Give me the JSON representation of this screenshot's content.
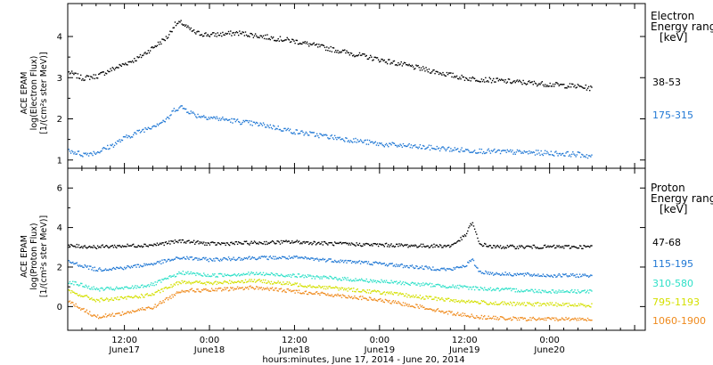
{
  "xlabel": "hours:minutes, June 17, 2014 - June 20, 2014",
  "x_ticks": [
    {
      "hour": 12,
      "label": "12:00",
      "day": "June17"
    },
    {
      "hour": 24,
      "label": "0:00",
      "day": "June18"
    },
    {
      "hour": 36,
      "label": "12:00",
      "day": "June18"
    },
    {
      "hour": 48,
      "label": "0:00",
      "day": "June19"
    },
    {
      "hour": 60,
      "label": "12:00",
      "day": "June19"
    },
    {
      "hour": 72,
      "label": "0:00",
      "day": "June20"
    }
  ],
  "chart_data": [
    {
      "type": "scatter",
      "panel": "electron",
      "ylabel_lines": [
        "ACE EPAM",
        "log(Electron Flux)",
        "[1/(cm²s ster MeV)]"
      ],
      "ylim": [
        0.8,
        4.8
      ],
      "yticks": [
        1,
        2,
        3,
        4
      ],
      "xlim_hours": [
        4,
        85.5
      ],
      "legend_title_lines": [
        "Electron",
        "Energy range",
        "[keV]"
      ],
      "series": [
        {
          "name": "38-53",
          "color": "#000000",
          "x": [
            4,
            6,
            8,
            10,
            12,
            14,
            16,
            18,
            19,
            20,
            21,
            22,
            24,
            28,
            32,
            36,
            40,
            44,
            48,
            52,
            56,
            60,
            64,
            68,
            72,
            76,
            78
          ],
          "y": [
            3.15,
            3.0,
            3.05,
            3.2,
            3.35,
            3.5,
            3.75,
            4.0,
            4.3,
            4.35,
            4.2,
            4.1,
            4.05,
            4.1,
            4.0,
            3.9,
            3.75,
            3.6,
            3.45,
            3.3,
            3.15,
            3.0,
            2.95,
            2.9,
            2.85,
            2.8,
            2.75
          ]
        },
        {
          "name": "175-315",
          "color": "#1f77d4",
          "x": [
            4,
            6,
            8,
            10,
            12,
            14,
            16,
            18,
            19,
            20,
            21,
            22,
            24,
            28,
            32,
            36,
            40,
            44,
            48,
            52,
            56,
            60,
            64,
            68,
            72,
            76,
            78
          ],
          "y": [
            1.25,
            1.15,
            1.2,
            1.35,
            1.55,
            1.7,
            1.85,
            2.0,
            2.25,
            2.3,
            2.2,
            2.1,
            2.05,
            1.95,
            1.85,
            1.7,
            1.6,
            1.5,
            1.4,
            1.35,
            1.3,
            1.25,
            1.22,
            1.2,
            1.18,
            1.15,
            1.1
          ]
        }
      ]
    },
    {
      "type": "scatter",
      "panel": "proton",
      "ylabel_lines": [
        "ACE EPAM",
        "log(Proton Flux)",
        "[1/(cm²s ster MeV)]"
      ],
      "ylim": [
        -1.2,
        7.0
      ],
      "yticks": [
        0,
        2,
        4,
        6
      ],
      "xlim_hours": [
        4,
        85.5
      ],
      "legend_title_lines": [
        "Proton",
        "Energy range",
        "[keV]"
      ],
      "series": [
        {
          "name": "47-68",
          "color": "#000000",
          "x": [
            4,
            8,
            12,
            16,
            20,
            24,
            30,
            36,
            42,
            48,
            54,
            58,
            60,
            61,
            62,
            64,
            68,
            72,
            76,
            78
          ],
          "y": [
            3.1,
            3.05,
            3.1,
            3.15,
            3.35,
            3.2,
            3.25,
            3.3,
            3.2,
            3.15,
            3.1,
            3.1,
            3.6,
            4.3,
            3.2,
            3.05,
            3.05,
            3.05,
            3.05,
            3.05
          ]
        },
        {
          "name": "115-195",
          "color": "#1f77d4",
          "x": [
            4,
            8,
            12,
            16,
            20,
            24,
            30,
            36,
            42,
            48,
            54,
            58,
            60,
            61,
            62,
            64,
            68,
            72,
            76,
            78
          ],
          "y": [
            2.3,
            1.9,
            2.0,
            2.2,
            2.5,
            2.4,
            2.5,
            2.5,
            2.35,
            2.2,
            2.0,
            1.9,
            2.1,
            2.4,
            1.8,
            1.7,
            1.65,
            1.6,
            1.6,
            1.6
          ]
        },
        {
          "name": "310-580",
          "color": "#2ee0c8",
          "x": [
            4,
            8,
            12,
            16,
            20,
            24,
            30,
            36,
            42,
            48,
            54,
            58,
            62,
            64,
            68,
            72,
            76,
            78
          ],
          "y": [
            1.3,
            0.9,
            0.95,
            1.15,
            1.75,
            1.6,
            1.7,
            1.6,
            1.45,
            1.3,
            1.15,
            1.05,
            0.95,
            0.9,
            0.85,
            0.8,
            0.8,
            0.8
          ]
        },
        {
          "name": "795-1193",
          "color": "#d4e000",
          "x": [
            4,
            8,
            12,
            16,
            20,
            24,
            30,
            36,
            42,
            48,
            54,
            58,
            62,
            64,
            68,
            72,
            76,
            78
          ],
          "y": [
            0.8,
            0.35,
            0.45,
            0.65,
            1.3,
            1.2,
            1.35,
            1.15,
            0.95,
            0.75,
            0.5,
            0.35,
            0.25,
            0.2,
            0.15,
            0.15,
            0.1,
            0.1
          ]
        },
        {
          "name": "1060-1900",
          "color": "#ef8a1c",
          "x": [
            4,
            8,
            12,
            16,
            20,
            24,
            30,
            36,
            42,
            48,
            54,
            58,
            62,
            64,
            68,
            72,
            76,
            78
          ],
          "y": [
            0.3,
            -0.5,
            -0.3,
            0.0,
            0.85,
            0.85,
            1.0,
            0.8,
            0.6,
            0.35,
            0.0,
            -0.3,
            -0.5,
            -0.55,
            -0.6,
            -0.6,
            -0.6,
            -0.6
          ]
        }
      ]
    }
  ]
}
